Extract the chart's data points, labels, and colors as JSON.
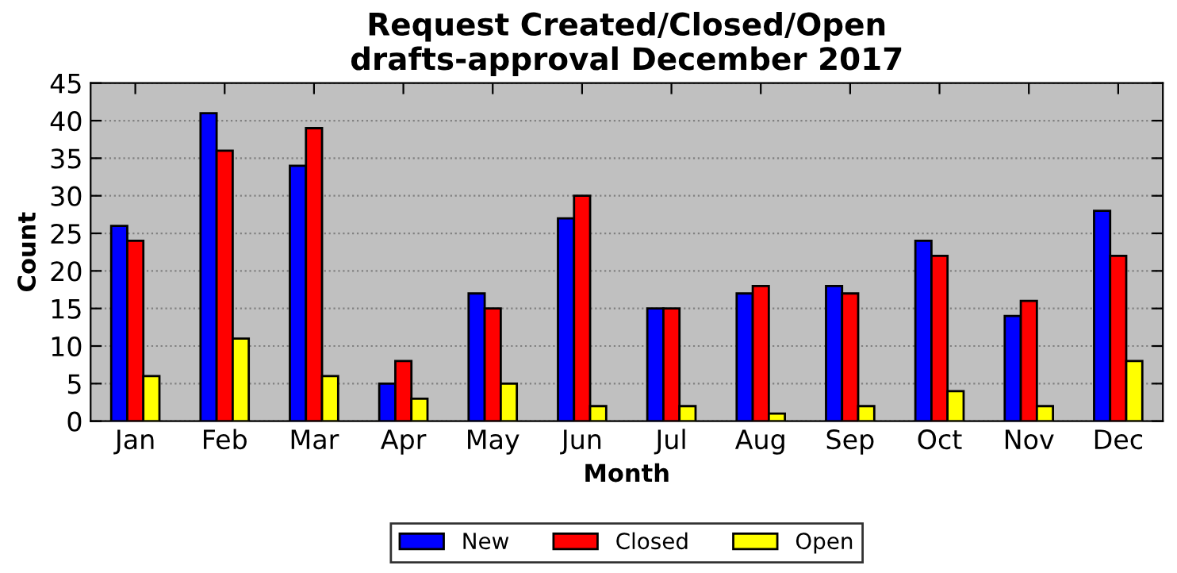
{
  "chart_data": {
    "type": "bar",
    "title": "Request Created/Closed/Open\ndrafts-approval December 2017",
    "xlabel": "Month",
    "ylabel": "Count",
    "categories": [
      "Jan",
      "Feb",
      "Mar",
      "Apr",
      "May",
      "Jun",
      "Jul",
      "Aug",
      "Sep",
      "Oct",
      "Nov",
      "Dec"
    ],
    "series": [
      {
        "name": "New",
        "color": "#0000ff",
        "values": [
          26,
          41,
          34,
          5,
          17,
          27,
          15,
          17,
          18,
          24,
          14,
          28
        ]
      },
      {
        "name": "Closed",
        "color": "#ff0000",
        "values": [
          24,
          36,
          39,
          8,
          15,
          30,
          15,
          18,
          17,
          22,
          16,
          22
        ]
      },
      {
        "name": "Open",
        "color": "#ffff00",
        "values": [
          6,
          11,
          6,
          3,
          5,
          2,
          2,
          1,
          2,
          4,
          2,
          8
        ]
      }
    ],
    "ylim": [
      0,
      45
    ],
    "yticks": [
      0,
      5,
      10,
      15,
      20,
      25,
      30,
      35,
      40,
      45
    ],
    "grid": "y",
    "legend": "bottom"
  }
}
